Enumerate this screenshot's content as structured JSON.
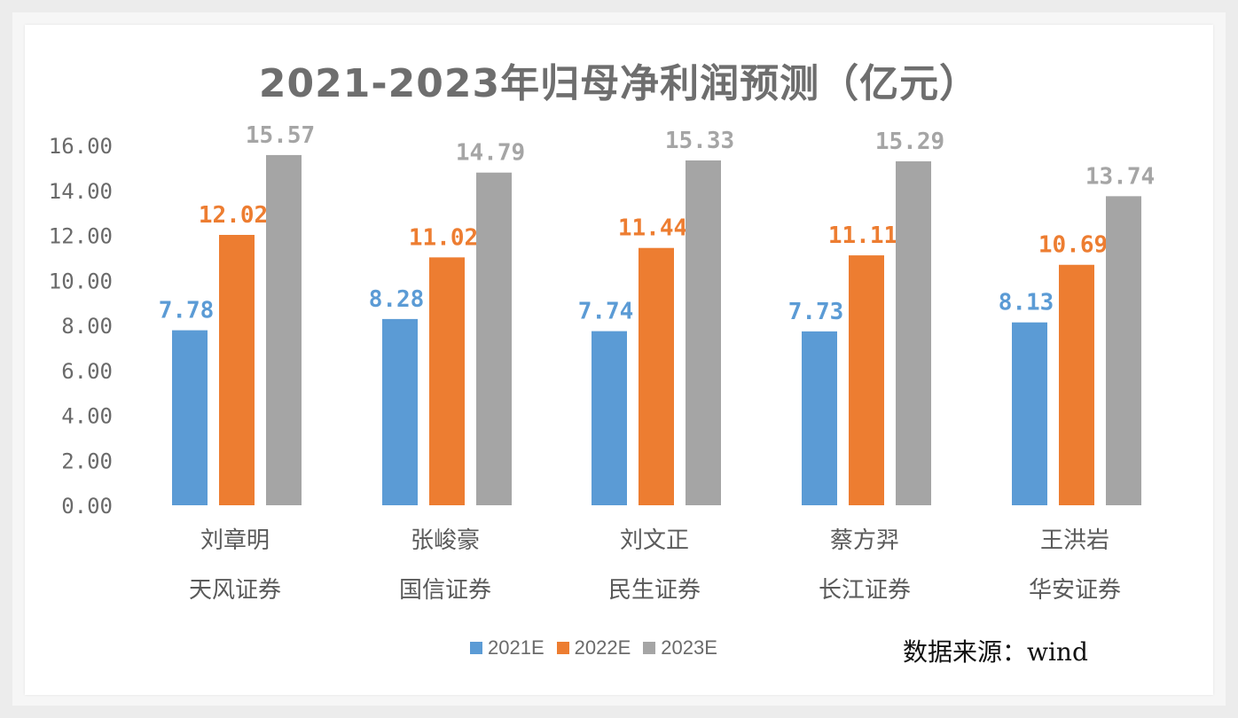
{
  "chart_data": {
    "type": "bar",
    "title": "2021-2023年归母净利润预测（亿元）",
    "categories": [
      {
        "line1": "刘章明",
        "line2": "天风证券"
      },
      {
        "line1": "张峻豪",
        "line2": "国信证券"
      },
      {
        "line1": "刘文正",
        "line2": "民生证券"
      },
      {
        "line1": "蔡方羿",
        "line2": "长江证券"
      },
      {
        "line1": "王洪岩",
        "line2": "华安证券"
      }
    ],
    "series": [
      {
        "name": "2021E",
        "color": "#5b9bd5",
        "values": [
          7.78,
          8.28,
          7.74,
          7.73,
          8.13
        ],
        "labels": [
          "7.78",
          "8.28",
          "7.74",
          "7.73",
          "8.13"
        ]
      },
      {
        "name": "2022E",
        "color": "#ed7d31",
        "values": [
          12.02,
          11.02,
          11.44,
          11.11,
          10.69
        ],
        "labels": [
          "12.02",
          "11.02",
          "11.44",
          "11.11",
          "10.69"
        ]
      },
      {
        "name": "2023E",
        "color": "#a5a5a5",
        "values": [
          15.57,
          14.79,
          15.33,
          15.29,
          13.74
        ],
        "labels": [
          "15.57",
          "14.79",
          "15.33",
          "15.29",
          "13.74"
        ]
      }
    ],
    "ylim": [
      0,
      16
    ],
    "yticks": [
      "0.00",
      "2.00",
      "4.00",
      "6.00",
      "8.00",
      "10.00",
      "12.00",
      "14.00",
      "16.00"
    ],
    "legend_position": "bottom",
    "grid": false,
    "xlabel": "",
    "ylabel": ""
  },
  "source_note": "数据来源：wind"
}
